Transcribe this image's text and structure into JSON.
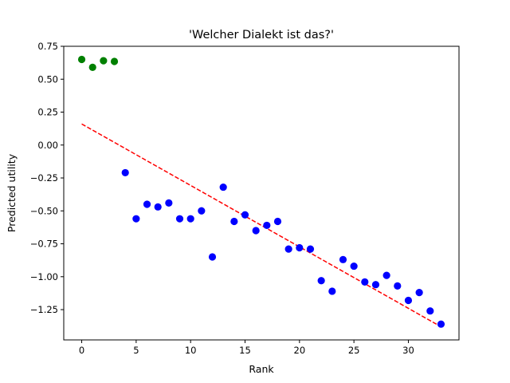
{
  "chart_data": {
    "type": "scatter",
    "title": "'Welcher Dialekt ist das?'",
    "xlabel": "Rank",
    "ylabel": "Predicted utility",
    "xlim": [
      -1.65,
      34.65
    ],
    "ylim": [
      -1.48,
      0.75
    ],
    "xticks": [
      0,
      5,
      10,
      15,
      20,
      25,
      30
    ],
    "yticks": [
      0.75,
      0.5,
      0.25,
      0.0,
      -0.25,
      -0.5,
      -0.75,
      -1.0,
      -1.25
    ],
    "ytick_labels": [
      "0.75",
      "0.50",
      "0.25",
      "0.00",
      "−0.25",
      "−0.50",
      "−0.75",
      "−1.00",
      "−1.25"
    ],
    "grid": false,
    "legend": "none",
    "series": [
      {
        "color": "#008000",
        "points": [
          [
            0,
            0.65
          ],
          [
            1,
            0.59
          ],
          [
            2,
            0.64
          ],
          [
            3,
            0.635
          ]
        ]
      },
      {
        "color": "#0000ff",
        "points": [
          [
            4,
            -0.21
          ],
          [
            5,
            -0.56
          ],
          [
            6,
            -0.45
          ],
          [
            7,
            -0.47
          ],
          [
            8,
            -0.44
          ],
          [
            9,
            -0.56
          ],
          [
            10,
            -0.56
          ],
          [
            11,
            -0.5
          ],
          [
            12,
            -0.85
          ],
          [
            13,
            -0.32
          ],
          [
            14,
            -0.58
          ],
          [
            15,
            -0.53
          ],
          [
            16,
            -0.65
          ],
          [
            17,
            -0.61
          ],
          [
            18,
            -0.58
          ],
          [
            19,
            -0.79
          ],
          [
            20,
            -0.78
          ],
          [
            21,
            -0.79
          ],
          [
            22,
            -1.03
          ],
          [
            23,
            -1.11
          ],
          [
            24,
            -0.87
          ],
          [
            25,
            -0.92
          ],
          [
            26,
            -1.04
          ],
          [
            27,
            -1.06
          ],
          [
            28,
            -0.99
          ],
          [
            29,
            -1.07
          ],
          [
            30,
            -1.18
          ],
          [
            31,
            -1.12
          ],
          [
            32,
            -1.26
          ],
          [
            33,
            -1.36
          ]
        ]
      }
    ],
    "trendline": {
      "color": "#ff0000",
      "style": "dashed",
      "points": [
        [
          0,
          0.16
        ],
        [
          33,
          -1.38
        ]
      ]
    }
  }
}
